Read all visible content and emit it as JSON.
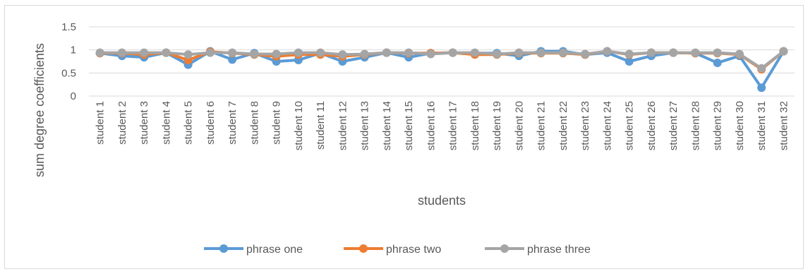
{
  "chart_data": {
    "type": "line",
    "title": "",
    "xlabel": "students",
    "ylabel": "sum degree coefficients",
    "ylim": [
      0,
      1.5
    ],
    "yticks": [
      "0",
      "0.5",
      "1",
      "1.5"
    ],
    "grid": true,
    "legend_position": "bottom",
    "categories": [
      "student 1",
      "student 2",
      "student 3",
      "student 4",
      "student 5",
      "student 6",
      "student 7",
      "student 8",
      "student 9",
      "student 10",
      "student 11",
      "student 12",
      "student 13",
      "student 14",
      "student 15",
      "student 16",
      "student 17",
      "student 18",
      "student 19",
      "student 20",
      "student 21",
      "student 22",
      "student 23",
      "student 24",
      "student 25",
      "student 26",
      "student 27",
      "student 28",
      "student 29",
      "student 30",
      "student 31",
      "student 32"
    ],
    "series": [
      {
        "name": "phrase one",
        "color": "#5b9bd5",
        "values": [
          0.93,
          0.87,
          0.84,
          0.94,
          0.68,
          0.97,
          0.79,
          0.93,
          0.75,
          0.78,
          0.93,
          0.75,
          0.84,
          0.94,
          0.84,
          0.93,
          0.94,
          0.93,
          0.93,
          0.87,
          0.97,
          0.97,
          0.9,
          0.94,
          0.75,
          0.87,
          0.94,
          0.93,
          0.72,
          0.87,
          0.18,
          0.97
        ]
      },
      {
        "name": "phrase two",
        "color": "#ed7d31",
        "values": [
          0.93,
          0.93,
          0.9,
          0.94,
          0.78,
          0.96,
          0.93,
          0.9,
          0.86,
          0.9,
          0.9,
          0.86,
          0.9,
          0.94,
          0.93,
          0.93,
          0.94,
          0.9,
          0.9,
          0.93,
          0.93,
          0.93,
          0.9,
          0.97,
          0.9,
          0.94,
          0.94,
          0.93,
          0.93,
          0.9,
          0.58,
          0.97
        ]
      },
      {
        "name": "phrase three",
        "color": "#a5a5a5",
        "values": [
          0.94,
          0.94,
          0.94,
          0.94,
          0.9,
          0.94,
          0.94,
          0.91,
          0.91,
          0.94,
          0.94,
          0.9,
          0.91,
          0.94,
          0.94,
          0.91,
          0.94,
          0.94,
          0.91,
          0.94,
          0.94,
          0.94,
          0.91,
          0.97,
          0.91,
          0.94,
          0.94,
          0.94,
          0.94,
          0.91,
          0.6,
          0.97
        ]
      }
    ]
  }
}
